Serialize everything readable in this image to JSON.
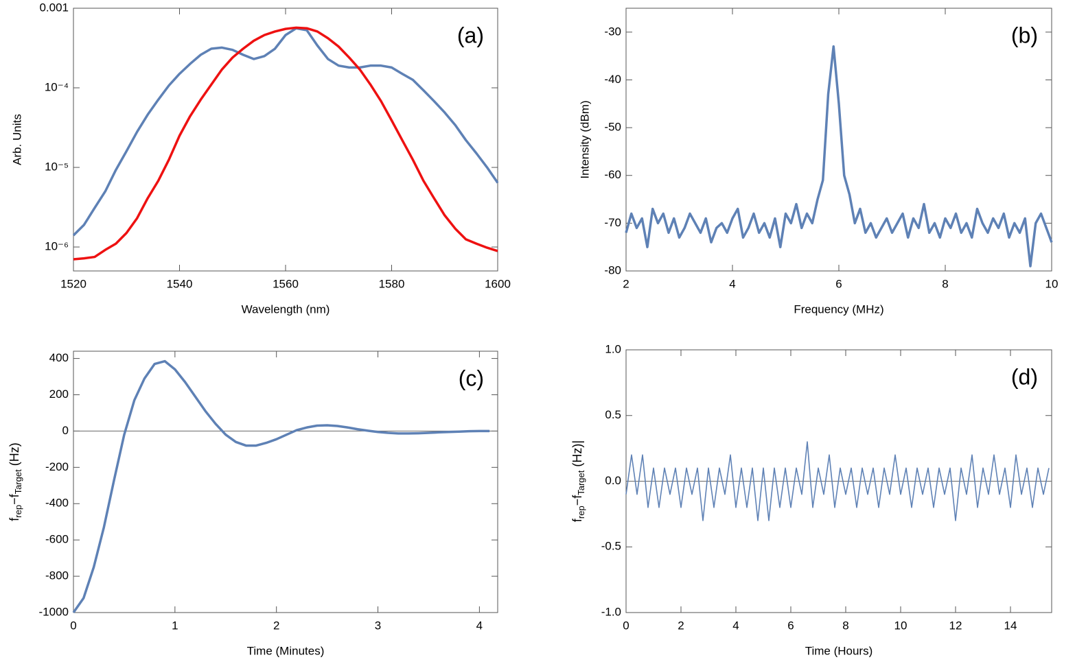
{
  "chart_data": [
    {
      "type": "line",
      "annotation": "(a)",
      "xlabel": "Wavelength (nm)",
      "ylabel": "Arb. Units",
      "ylog": true,
      "xlim": [
        1520,
        1600
      ],
      "xticks": [
        1520,
        1540,
        1560,
        1580,
        1600
      ],
      "ylim": [
        5e-07,
        0.001
      ],
      "yticks": [
        {
          "value": 1e-06,
          "label": "10⁻⁶"
        },
        {
          "value": 1e-05,
          "label": "10⁻⁵"
        },
        {
          "value": 0.0001,
          "label": "10⁻⁴"
        },
        0.001
      ],
      "x": [
        1520,
        1522,
        1524,
        1526,
        1528,
        1530,
        1532,
        1534,
        1536,
        1538,
        1540,
        1542,
        1544,
        1546,
        1548,
        1550,
        1552,
        1554,
        1556,
        1558,
        1560,
        1562,
        1564,
        1566,
        1568,
        1570,
        1572,
        1574,
        1576,
        1578,
        1580,
        1582,
        1584,
        1586,
        1588,
        1590,
        1592,
        1594,
        1596,
        1598,
        1600
      ],
      "series": [
        {
          "color": "#5e81b5",
          "width": 3.5,
          "values": [
            1.4e-06,
            1.9e-06,
            3.1e-06,
            5e-06,
            9.3e-06,
            1.6e-05,
            2.8e-05,
            4.6e-05,
            7.1e-05,
            0.000107,
            0.00015,
            0.0002,
            0.00026,
            0.00031,
            0.00032,
            0.0003,
            0.00026,
            0.00023,
            0.00025,
            0.00031,
            0.00046,
            0.00056,
            0.00053,
            0.00034,
            0.00023,
            0.00019,
            0.00018,
            0.00018,
            0.00019,
            0.00019,
            0.00018,
            0.00015,
            0.000126,
            9.3e-05,
            6.8e-05,
            4.9e-05,
            3.4e-05,
            2.2e-05,
            1.5e-05,
            1e-05,
            6.4e-06
          ]
        },
        {
          "color": "#ee1111",
          "width": 3.5,
          "values": [
            7e-07,
            7.2e-07,
            7.5e-07,
            9.2e-07,
            1.1e-06,
            1.5e-06,
            2.3e-06,
            4.1e-06,
            6.8e-06,
            1.25e-05,
            2.5e-05,
            4.4e-05,
            7.1e-05,
            0.00011,
            0.00017,
            0.00024,
            0.00031,
            0.00039,
            0.00046,
            0.00051,
            0.00055,
            0.00057,
            0.00056,
            0.00051,
            0.00042,
            0.00033,
            0.00024,
            0.00017,
            0.00011,
            6.8e-05,
            3.9e-05,
            2.2e-05,
            1.25e-05,
            6.8e-06,
            4.1e-06,
            2.5e-06,
            1.7e-06,
            1.25e-06,
            1.1e-06,
            9.8e-07,
            8.9e-07
          ]
        }
      ]
    },
    {
      "type": "line",
      "annotation": "(b)",
      "xlabel": "Frequency (MHz)",
      "ylabel": "Intensity (dBm)",
      "xlim": [
        2,
        10
      ],
      "xticks": [
        2,
        4,
        6,
        8,
        10
      ],
      "ylim": [
        -80,
        -25
      ],
      "yticks": [
        -80,
        -70,
        -60,
        -50,
        -40,
        -30
      ],
      "x": [
        2,
        2.1,
        2.2,
        2.3,
        2.4,
        2.5,
        2.6,
        2.7,
        2.8,
        2.9,
        3,
        3.1,
        3.2,
        3.3,
        3.4,
        3.5,
        3.6,
        3.7,
        3.8,
        3.9,
        4,
        4.1,
        4.2,
        4.3,
        4.4,
        4.5,
        4.6,
        4.7,
        4.8,
        4.9,
        5,
        5.1,
        5.2,
        5.3,
        5.4,
        5.5,
        5.6,
        5.7,
        5.8,
        5.9,
        6,
        6.1,
        6.2,
        6.3,
        6.4,
        6.5,
        6.6,
        6.7,
        6.8,
        6.9,
        7,
        7.1,
        7.2,
        7.3,
        7.4,
        7.5,
        7.6,
        7.7,
        7.8,
        7.9,
        8,
        8.1,
        8.2,
        8.3,
        8.4,
        8.5,
        8.6,
        8.7,
        8.8,
        8.9,
        9,
        9.1,
        9.2,
        9.3,
        9.4,
        9.5,
        9.6,
        9.7,
        9.8,
        9.9,
        10
      ],
      "series": [
        {
          "color": "#5e81b5",
          "width": 3.5,
          "values": [
            -72,
            -68,
            -71,
            -69,
            -75,
            -67,
            -70,
            -68,
            -72,
            -69,
            -73,
            -71,
            -68,
            -70,
            -72,
            -69,
            -74,
            -71,
            -70,
            -72,
            -69,
            -67,
            -73,
            -71,
            -68,
            -72,
            -70,
            -73,
            -69,
            -75,
            -68,
            -70,
            -66,
            -71,
            -68,
            -70,
            -65,
            -61,
            -43,
            -33,
            -45,
            -60,
            -64,
            -70,
            -67,
            -72,
            -70,
            -73,
            -71,
            -69,
            -72,
            -70,
            -68,
            -73,
            -69,
            -71,
            -66,
            -72,
            -70,
            -73,
            -69,
            -71,
            -68,
            -72,
            -70,
            -73,
            -67,
            -70,
            -72,
            -69,
            -71,
            -68,
            -73,
            -70,
            -72,
            -69,
            -79,
            -70,
            -68,
            -71,
            -74
          ]
        }
      ]
    },
    {
      "type": "line",
      "annotation": "(c)",
      "xlabel": "Time (Minutes)",
      "ylabel": [
        "f",
        "rep",
        "−f",
        "Target",
        " (Hz)"
      ],
      "xlim": [
        0,
        4.18
      ],
      "xticks": [
        0,
        1,
        2,
        3,
        4
      ],
      "ylim": [
        -1000,
        440
      ],
      "yticks": [
        -1000,
        -800,
        -600,
        -400,
        -200,
        0,
        200,
        400
      ],
      "hline": 0,
      "x": [
        0,
        0.1,
        0.2,
        0.3,
        0.4,
        0.5,
        0.6,
        0.7,
        0.8,
        0.9,
        1,
        1.1,
        1.2,
        1.3,
        1.4,
        1.5,
        1.6,
        1.7,
        1.8,
        1.9,
        2,
        2.1,
        2.2,
        2.3,
        2.4,
        2.5,
        2.6,
        2.7,
        2.8,
        2.9,
        3,
        3.1,
        3.2,
        3.3,
        3.4,
        3.5,
        3.6,
        3.7,
        3.8,
        3.9,
        4,
        4.1
      ],
      "series": [
        {
          "color": "#5e81b5",
          "width": 3.5,
          "values": [
            -1000,
            -920,
            -750,
            -530,
            -270,
            -20,
            170,
            290,
            370,
            385,
            340,
            270,
            190,
            110,
            40,
            -20,
            -60,
            -80,
            -80,
            -65,
            -45,
            -20,
            5,
            20,
            30,
            32,
            28,
            20,
            10,
            2,
            -5,
            -10,
            -13,
            -13,
            -12,
            -10,
            -7,
            -5,
            -3,
            -1,
            0,
            0
          ]
        }
      ]
    },
    {
      "type": "line",
      "annotation": "(d)",
      "xlabel": "Time (Hours)",
      "ylabel": [
        "f",
        "rep",
        "−f",
        "Target",
        " (Hz)|"
      ],
      "xlim": [
        0,
        15.5
      ],
      "xticks": [
        0,
        2,
        4,
        6,
        8,
        10,
        12,
        14
      ],
      "ylim": [
        -1,
        1
      ],
      "yticks": [
        {
          "value": -1,
          "label": "-1.0"
        },
        -0.5,
        {
          "value": 0,
          "label": "0.0"
        },
        0.5,
        {
          "value": 1,
          "label": "1.0"
        }
      ],
      "hline": 0,
      "x": [
        0,
        0.2,
        0.4,
        0.6,
        0.8,
        1,
        1.2,
        1.4,
        1.6,
        1.8,
        2,
        2.2,
        2.4,
        2.6,
        2.8,
        3,
        3.2,
        3.4,
        3.6,
        3.8,
        4,
        4.2,
        4.4,
        4.6,
        4.8,
        5,
        5.2,
        5.4,
        5.6,
        5.8,
        6,
        6.2,
        6.4,
        6.6,
        6.8,
        7,
        7.2,
        7.4,
        7.6,
        7.8,
        8,
        8.2,
        8.4,
        8.6,
        8.8,
        9,
        9.2,
        9.4,
        9.6,
        9.8,
        10,
        10.2,
        10.4,
        10.6,
        10.8,
        11,
        11.2,
        11.4,
        11.6,
        11.8,
        12,
        12.2,
        12.4,
        12.6,
        12.8,
        13,
        13.2,
        13.4,
        13.6,
        13.8,
        14,
        14.2,
        14.4,
        14.6,
        14.8,
        15,
        15.2,
        15.4
      ],
      "series": [
        {
          "color": "#5e81b5",
          "width": 1.6,
          "values": [
            -0.1,
            0.2,
            -0.1,
            0.2,
            -0.2,
            0.1,
            -0.2,
            0.1,
            -0.1,
            0.1,
            -0.2,
            0.1,
            -0.1,
            0.1,
            -0.3,
            0.1,
            -0.2,
            0.1,
            -0.1,
            0.2,
            -0.2,
            0.1,
            -0.2,
            0.1,
            -0.3,
            0.1,
            -0.3,
            0.1,
            -0.2,
            0.1,
            -0.2,
            0.1,
            -0.1,
            0.3,
            -0.2,
            0.1,
            -0.1,
            0.2,
            -0.2,
            0.1,
            -0.1,
            0.1,
            -0.2,
            0.1,
            -0.1,
            0.1,
            -0.2,
            0.1,
            -0.1,
            0.2,
            -0.1,
            0.1,
            -0.2,
            0.1,
            -0.1,
            0.1,
            -0.2,
            0.1,
            -0.1,
            0.1,
            -0.3,
            0.1,
            -0.1,
            0.2,
            -0.2,
            0.1,
            -0.1,
            0.2,
            -0.1,
            0.1,
            -0.2,
            0.2,
            -0.1,
            0.1,
            -0.2,
            0.1,
            -0.1,
            0.1
          ]
        }
      ]
    }
  ]
}
